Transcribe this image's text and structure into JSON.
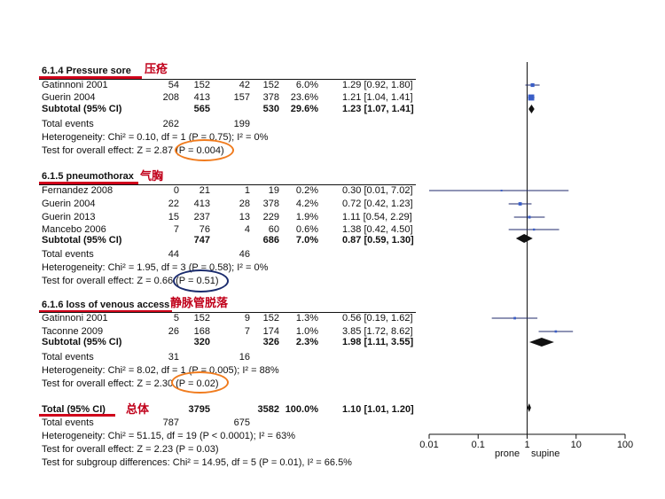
{
  "accent_red": "#c0001a",
  "highlight_orange": "#f07b1d",
  "highlight_navy": "#1a2b6d",
  "chart_data": {
    "type": "forest",
    "xscale": "log",
    "xlim": [
      0.01,
      100
    ],
    "xticks": [
      "0.01",
      "0.1",
      "1",
      "10",
      "100"
    ],
    "xlabel_left": "prone",
    "xlabel_right": "supine",
    "groups": [
      {
        "title": "6.1.4 Pressure sore",
        "cn_label": "压疮",
        "studies": [
          {
            "name": "Gatinnoni 2001",
            "e1": "54",
            "n1": "152",
            "e2": "42",
            "n2": "152",
            "weight": "6.0%",
            "ci_text": "1.29 [0.92, 1.80]",
            "est": 1.29,
            "lo": 0.92,
            "hi": 1.8
          },
          {
            "name": "Guerin 2004",
            "e1": "208",
            "n1": "413",
            "e2": "157",
            "n2": "378",
            "weight": "23.6%",
            "ci_text": "1.21 [1.04, 1.41]",
            "est": 1.21,
            "lo": 1.04,
            "hi": 1.41
          }
        ],
        "subtotal": {
          "label": "Subtotal (95% CI)",
          "n1": "565",
          "n2": "530",
          "weight": "29.6%",
          "ci_text": "1.23 [1.07, 1.41]",
          "est": 1.23,
          "lo": 1.07,
          "hi": 1.41
        },
        "total_events": {
          "label": "Total events",
          "e1": "262",
          "e2": "199"
        },
        "heterogeneity": "Heterogeneity: Chi² = 0.10, df = 1 (P = 0.75); I² = 0%",
        "overall_effect": "Test for overall effect: Z = 2.87 (P = 0.004)"
      },
      {
        "title": "6.1.5 pneumothorax",
        "cn_label": "气胸",
        "studies": [
          {
            "name": "Fernandez 2008",
            "e1": "0",
            "n1": "21",
            "e2": "1",
            "n2": "19",
            "weight": "0.2%",
            "ci_text": "0.30 [0.01, 7.02]",
            "est": 0.3,
            "lo": 0.01,
            "hi": 7.02
          },
          {
            "name": "Guerin 2004",
            "e1": "22",
            "n1": "413",
            "e2": "28",
            "n2": "378",
            "weight": "4.2%",
            "ci_text": "0.72 [0.42, 1.23]",
            "est": 0.72,
            "lo": 0.42,
            "hi": 1.23
          },
          {
            "name": "Guerin 2013",
            "e1": "15",
            "n1": "237",
            "e2": "13",
            "n2": "229",
            "weight": "1.9%",
            "ci_text": "1.11 [0.54, 2.29]",
            "est": 1.11,
            "lo": 0.54,
            "hi": 2.29
          },
          {
            "name": "Mancebo 2006",
            "e1": "7",
            "n1": "76",
            "e2": "4",
            "n2": "60",
            "weight": "0.6%",
            "ci_text": "1.38 [0.42, 4.50]",
            "est": 1.38,
            "lo": 0.42,
            "hi": 4.5
          }
        ],
        "subtotal": {
          "label": "Subtotal (95% CI)",
          "n1": "747",
          "n2": "686",
          "weight": "7.0%",
          "ci_text": "0.87 [0.59, 1.30]",
          "est": 0.87,
          "lo": 0.59,
          "hi": 1.3
        },
        "total_events": {
          "label": "Total events",
          "e1": "44",
          "e2": "46"
        },
        "heterogeneity": "Heterogeneity: Chi² = 1.95, df = 3 (P = 0.58); I² = 0%",
        "overall_effect": "Test for overall effect: Z = 0.66 (P = 0.51)"
      },
      {
        "title": "6.1.6 loss of venous access",
        "cn_label": "静脉管脱落",
        "studies": [
          {
            "name": "Gatinnoni 2001",
            "e1": "5",
            "n1": "152",
            "e2": "9",
            "n2": "152",
            "weight": "1.3%",
            "ci_text": "0.56 [0.19, 1.62]",
            "est": 0.56,
            "lo": 0.19,
            "hi": 1.62
          },
          {
            "name": "Taconne 2009",
            "e1": "26",
            "n1": "168",
            "e2": "7",
            "n2": "174",
            "weight": "1.0%",
            "ci_text": "3.85 [1.72, 8.62]",
            "est": 3.85,
            "lo": 1.72,
            "hi": 8.62
          }
        ],
        "subtotal": {
          "label": "Subtotal (95% CI)",
          "n1": "320",
          "n2": "326",
          "weight": "2.3%",
          "ci_text": "1.98 [1.11, 3.55]",
          "est": 1.98,
          "lo": 1.11,
          "hi": 3.55
        },
        "total_events": {
          "label": "Total events",
          "e1": "31",
          "e2": "16"
        },
        "heterogeneity": "Heterogeneity: Chi² = 8.02, df = 1 (P = 0.005); I² = 88%",
        "overall_effect": "Test for overall effect: Z = 2.30 (P = 0.02)"
      }
    ],
    "total": {
      "label": "Total (95% CI)",
      "cn_label": "总体",
      "n1": "3795",
      "n2": "3582",
      "weight": "100.0%",
      "ci_text": "1.10 [1.01, 1.20]",
      "est": 1.1,
      "lo": 1.01,
      "hi": 1.2,
      "total_events": {
        "label": "Total events",
        "e1": "787",
        "e2": "675"
      },
      "heterogeneity": "Heterogeneity: Chi² = 51.15, df = 19 (P < 0.0001); I² = 63%",
      "overall_effect": "Test for overall effect: Z = 2.23 (P = 0.03)",
      "subgroup": "Test for subgroup differences: Chi² = 14.95, df = 5 (P = 0.01), I² = 66.5%"
    }
  }
}
